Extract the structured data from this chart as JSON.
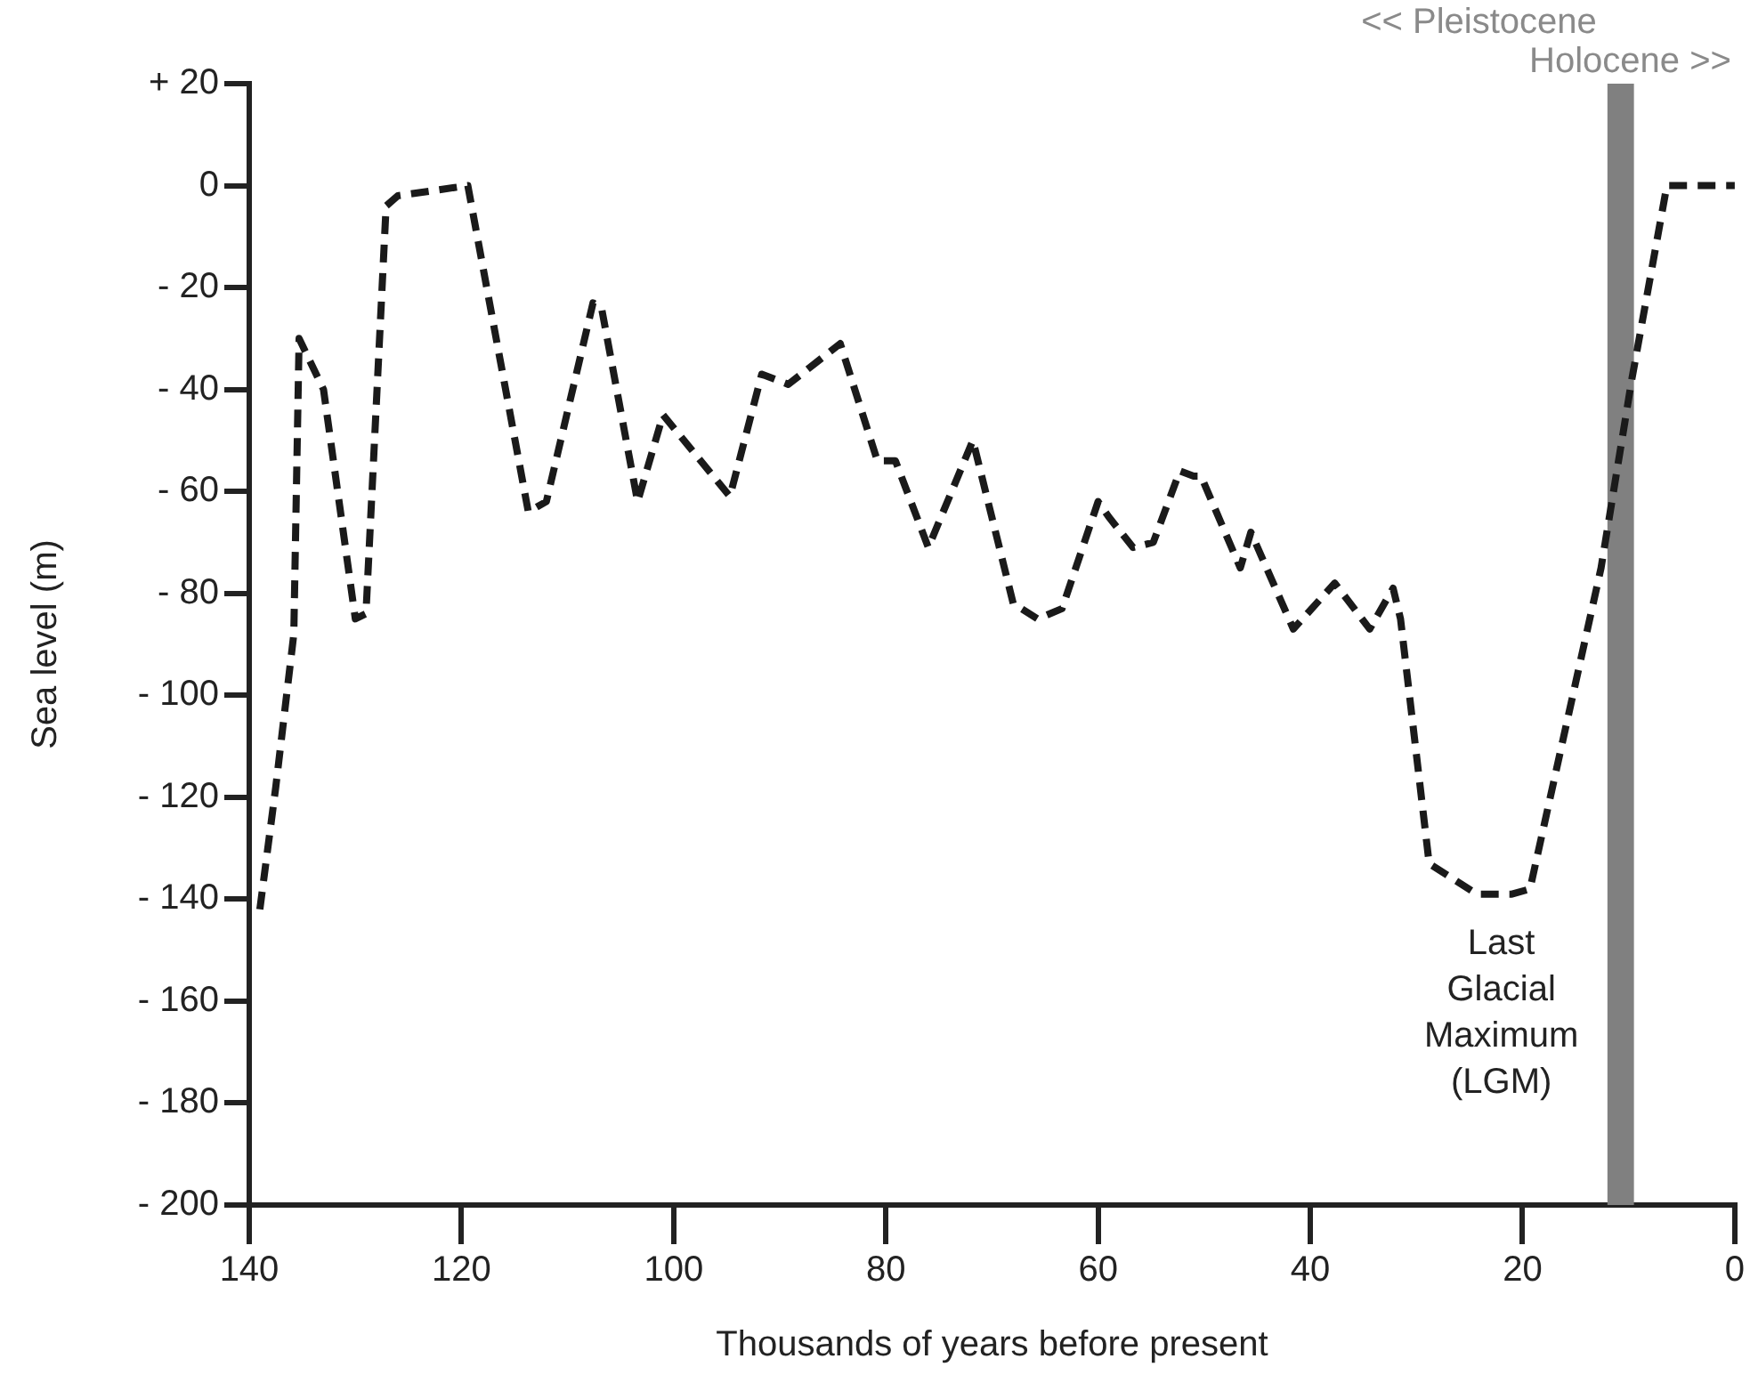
{
  "chart_data": {
    "type": "line",
    "xlabel": "Thousands of years before present",
    "ylabel": "Sea level (m)",
    "xlim": [
      140,
      0
    ],
    "xticks": [
      140,
      120,
      100,
      80,
      60,
      40,
      20,
      0
    ],
    "ylim": [
      -200,
      20
    ],
    "yticks": [
      {
        "value": 20,
        "label": "+ 20"
      },
      {
        "value": 0,
        "label": "0"
      },
      {
        "value": -20,
        "label": "- 20"
      },
      {
        "value": -40,
        "label": "- 40"
      },
      {
        "value": -60,
        "label": "- 60"
      },
      {
        "value": -80,
        "label": "- 80"
      },
      {
        "value": -100,
        "label": "- 100"
      },
      {
        "value": -120,
        "label": "- 120"
      },
      {
        "value": -140,
        "label": "- 140"
      },
      {
        "value": -160,
        "label": "- 160"
      },
      {
        "value": -180,
        "label": "- 180"
      },
      {
        "value": -200,
        "label": "- 200"
      }
    ],
    "grid": false,
    "legend": false,
    "marker": "none",
    "line_style": "dashed",
    "series": [
      {
        "color": "#1a1a1a",
        "x": [
          139,
          137.5,
          135.8,
          135.3,
          133,
          130,
          129,
          127.1,
          126,
          119.4,
          113.7,
          112,
          107.6,
          106.8,
          103.4,
          101,
          94.7,
          91.7,
          89.2,
          84.3,
          80.8,
          79.1,
          76,
          71.8,
          68,
          65.7,
          63.4,
          60,
          59,
          56.7,
          54.8,
          52.3,
          51,
          50.3,
          46.6,
          45.6,
          41.6,
          37.7,
          34.4,
          32.2,
          31.5,
          28.8,
          24.3,
          21,
          19.3,
          15.9,
          12.6,
          9.7,
          6.4,
          0
        ],
        "values": [
          -142,
          -118,
          -88,
          -30,
          -40,
          -85,
          -84,
          -4,
          -2,
          0,
          -64,
          -62,
          -23,
          -24,
          -62,
          -45,
          -61,
          -37,
          -39,
          -31,
          -54,
          -54,
          -71,
          -50,
          -82,
          -85,
          -83,
          -62,
          -65,
          -71,
          -70,
          -56,
          -57,
          -57,
          -75,
          -68,
          -87,
          -78,
          -87,
          -79,
          -85,
          -133,
          -139,
          -139,
          -138,
          -106,
          -75,
          -38,
          0,
          0
        ]
      }
    ],
    "bands": [
      {
        "axis": "x",
        "from": 12,
        "to": 9.5,
        "color": "#808080"
      }
    ],
    "annotations": [
      "<< Pleistocene",
      "Holocene >>",
      {
        "text": "Last Glacial Maximum (LGM)",
        "x": 22,
        "y": -139
      }
    ]
  }
}
